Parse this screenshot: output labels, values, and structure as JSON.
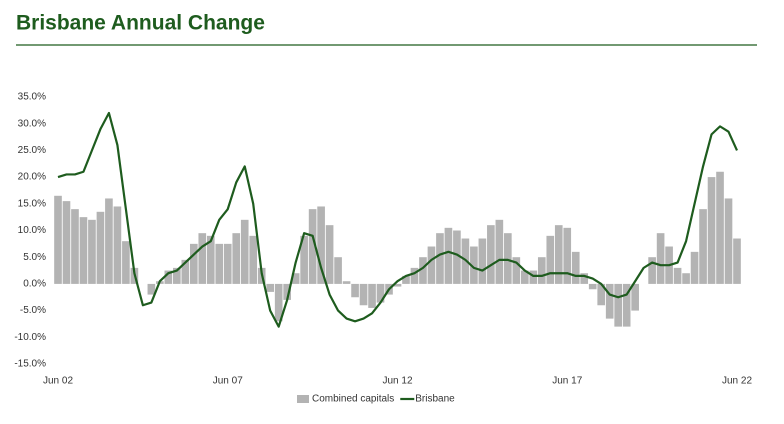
{
  "chart_data": {
    "type": "combo",
    "title": "Brisbane Annual Change",
    "categories": [
      "Jun 02",
      null,
      null,
      null,
      null,
      null,
      null,
      null,
      null,
      null,
      null,
      null,
      null,
      null,
      null,
      null,
      null,
      null,
      null,
      null,
      "Jun 07",
      null,
      null,
      null,
      null,
      null,
      null,
      null,
      null,
      null,
      null,
      null,
      null,
      null,
      null,
      null,
      null,
      null,
      null,
      null,
      "Jun 12",
      null,
      null,
      null,
      null,
      null,
      null,
      null,
      null,
      null,
      null,
      null,
      null,
      null,
      null,
      null,
      null,
      null,
      null,
      null,
      "Jun 17",
      null,
      null,
      null,
      null,
      null,
      null,
      null,
      null,
      null,
      null,
      null,
      null,
      null,
      null,
      null,
      null,
      null,
      null,
      null,
      "Jun 22"
    ],
    "series": [
      {
        "name": "Combined capitals",
        "type": "bar",
        "color": "#b3b3b3",
        "values": [
          16.5,
          15.5,
          14,
          12.5,
          12,
          13.5,
          16,
          14.5,
          8,
          3,
          0,
          -2,
          0.5,
          2.5,
          3,
          4.5,
          7.5,
          9.5,
          9,
          7.5,
          7.5,
          9.5,
          12,
          9,
          3,
          -1.5,
          -7,
          -3,
          2,
          9,
          14,
          14.5,
          11,
          5,
          0.5,
          -2.5,
          -4,
          -4.5,
          -3.5,
          -2,
          -0.5,
          1.5,
          3,
          5,
          7,
          9.5,
          10.5,
          10,
          8.5,
          7,
          8.5,
          11,
          12,
          9.5,
          5,
          2.5,
          2.5,
          5,
          9,
          11,
          10.5,
          6,
          2,
          -1,
          -4,
          -6.5,
          -8,
          -8,
          -5,
          0,
          5,
          9.5,
          7,
          3,
          2,
          6,
          14,
          20,
          21,
          16,
          8.5
        ]
      },
      {
        "name": "Brisbane",
        "type": "line",
        "color": "#1e5c1e",
        "values": [
          20,
          20.5,
          20.5,
          21,
          25,
          29,
          32,
          26,
          14,
          2,
          -4,
          -3.5,
          0.5,
          2,
          2.5,
          4,
          5.5,
          7,
          8,
          12,
          14,
          19,
          22,
          15,
          2,
          -5,
          -8,
          -3,
          4,
          9.5,
          9,
          3,
          -2,
          -5,
          -6.5,
          -7,
          -6.5,
          -5.5,
          -3.5,
          -1,
          0.5,
          1.5,
          2,
          3,
          4.5,
          5.5,
          6,
          5.5,
          4.5,
          3,
          2.5,
          3.5,
          4.5,
          4.5,
          4,
          2.5,
          1.5,
          1.5,
          2,
          2,
          2,
          1.5,
          1.5,
          1,
          0,
          -2,
          -2.5,
          -2,
          0.5,
          3,
          4,
          3.5,
          3.5,
          4,
          8,
          15,
          22,
          28,
          29.5,
          28.5,
          25
        ]
      }
    ],
    "ylim": [
      -15,
      35
    ],
    "yticks": [
      {
        "value": -15,
        "label": "-15.0%"
      },
      {
        "value": -10,
        "label": "-10.0%"
      },
      {
        "value": -5,
        "label": "-5.0%"
      },
      {
        "value": 0,
        "label": "0.0%"
      },
      {
        "value": 5,
        "label": "5.0%"
      },
      {
        "value": 10,
        "label": "10.0%"
      },
      {
        "value": 15,
        "label": "15.0%"
      },
      {
        "value": 20,
        "label": "20.0%"
      },
      {
        "value": 25,
        "label": "25.0%"
      },
      {
        "value": 30,
        "label": "30.0%"
      },
      {
        "value": 35,
        "label": "35.0%"
      }
    ],
    "grid": false,
    "legend": "bottom"
  }
}
